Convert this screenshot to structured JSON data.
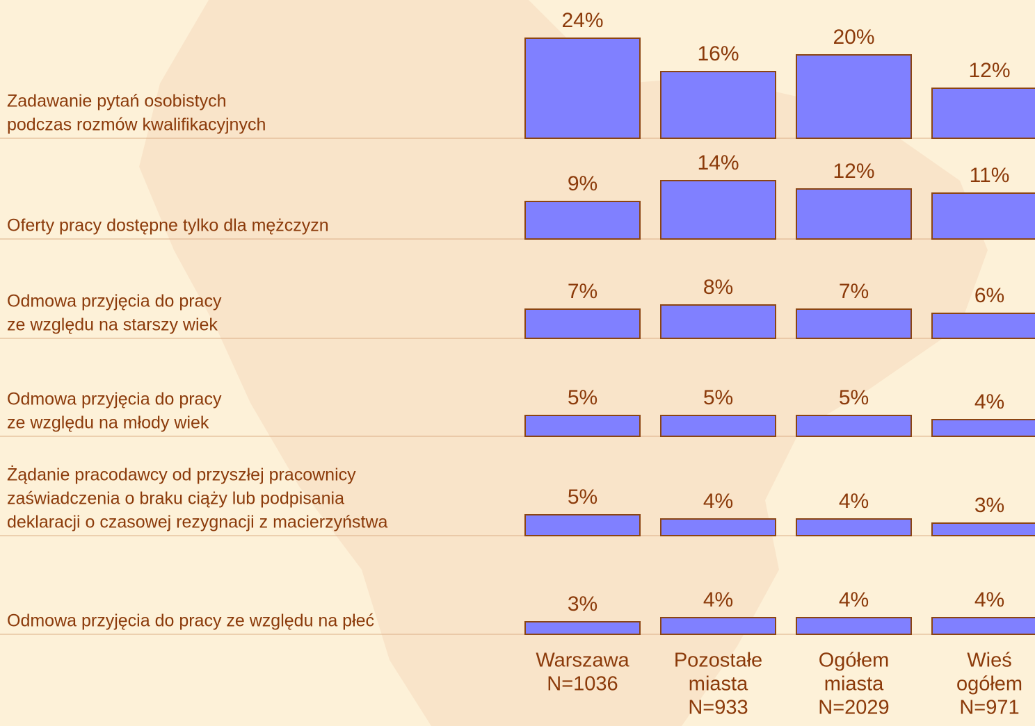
{
  "chart_data": {
    "type": "bar",
    "categories": [
      [
        "Zadawanie pytań osobistych",
        "podczas rozmów kwalifikacyjnych"
      ],
      [
        "Oferty pracy dostępne tylko dla mężczyzn"
      ],
      [
        "Odmowa przyjęcia do pracy",
        "ze względu na starszy wiek"
      ],
      [
        "Odmowa przyjęcia do pracy",
        "ze względu na młody wiek"
      ],
      [
        "Żądanie pracodawcy od przyszłej pracownicy",
        "zaświadczenia o braku ciąży lub podpisania",
        "deklaracji o czasowej rezygnacji z macierzyństwa"
      ],
      [
        "Odmowa przyjęcia do pracy ze względu na płeć"
      ]
    ],
    "series": [
      {
        "name": [
          "Warszawa",
          "N=1036"
        ],
        "color": "#8080ff",
        "values": [
          24,
          9,
          7,
          5,
          5,
          3
        ],
        "value_labels": [
          "24%",
          "9%",
          "7%",
          "5%",
          "5%",
          "3%"
        ]
      },
      {
        "name": [
          "Pozostałe",
          "miasta",
          "N=933"
        ],
        "color": "#8080ff",
        "values": [
          16,
          14,
          8,
          5,
          4,
          4
        ],
        "value_labels": [
          "16%",
          "14%",
          "8%",
          "5%",
          "4%",
          "4%"
        ]
      },
      {
        "name": [
          "Ogółem",
          "miasta",
          "N=2029"
        ],
        "color": "#8080ff",
        "values": [
          20,
          12,
          7,
          5,
          4,
          4
        ],
        "value_labels": [
          "20%",
          "12%",
          "7%",
          "5%",
          "4%",
          "4%"
        ]
      },
      {
        "name": [
          "Wieś",
          "ogółem",
          "N=971"
        ],
        "color": "#8080ff",
        "values": [
          12,
          11,
          6,
          4,
          3,
          4
        ],
        "value_labels": [
          "12%",
          "11%",
          "6%",
          "4%",
          "3%",
          "4%"
        ]
      }
    ],
    "ylim": [
      0,
      25
    ]
  }
}
